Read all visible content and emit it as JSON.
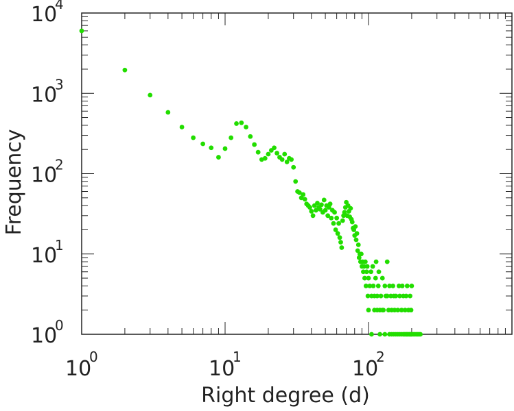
{
  "chart_data": {
    "type": "scatter",
    "title": "",
    "xlabel": "Right degree (d)",
    "ylabel": "Frequency",
    "xscale": "log",
    "yscale": "log",
    "xlim": [
      1,
      1000
    ],
    "ylim": [
      1,
      10000
    ],
    "grid": false,
    "legend": "none",
    "point_color": "#22dd00",
    "axis_color": "#222222",
    "x_ticks": [
      {
        "base": "10",
        "exp": "0"
      },
      {
        "base": "10",
        "exp": "1"
      },
      {
        "base": "10",
        "exp": "2"
      }
    ],
    "y_ticks": [
      {
        "base": "10",
        "exp": "0"
      },
      {
        "base": "10",
        "exp": "1"
      },
      {
        "base": "10",
        "exp": "2"
      },
      {
        "base": "10",
        "exp": "3"
      },
      {
        "base": "10",
        "exp": "4"
      }
    ],
    "series": [
      {
        "name": "frequency",
        "points": [
          [
            1,
            6000
          ],
          [
            2,
            1950
          ],
          [
            3,
            950
          ],
          [
            4,
            580
          ],
          [
            5,
            380
          ],
          [
            6,
            280
          ],
          [
            7,
            235
          ],
          [
            8,
            210
          ],
          [
            9,
            160
          ],
          [
            10,
            205
          ],
          [
            11,
            280
          ],
          [
            12,
            420
          ],
          [
            13,
            430
          ],
          [
            14,
            380
          ],
          [
            15,
            290
          ],
          [
            16,
            230
          ],
          [
            17,
            185
          ],
          [
            18,
            150
          ],
          [
            19,
            155
          ],
          [
            20,
            175
          ],
          [
            21,
            195
          ],
          [
            22,
            210
          ],
          [
            23,
            180
          ],
          [
            24,
            160
          ],
          [
            25,
            150
          ],
          [
            26,
            175
          ],
          [
            27,
            140
          ],
          [
            28,
            155
          ],
          [
            29,
            150
          ],
          [
            30,
            120
          ],
          [
            31,
            80
          ],
          [
            32,
            60
          ],
          [
            33,
            58
          ],
          [
            34,
            50
          ],
          [
            35,
            55
          ],
          [
            36,
            48
          ],
          [
            37,
            42
          ],
          [
            38,
            40
          ],
          [
            39,
            38
          ],
          [
            40,
            34
          ],
          [
            41,
            30
          ],
          [
            42,
            40
          ],
          [
            43,
            35
          ],
          [
            44,
            43
          ],
          [
            45,
            38
          ],
          [
            46,
            36
          ],
          [
            47,
            41
          ],
          [
            48,
            33
          ],
          [
            49,
            47
          ],
          [
            50,
            35
          ],
          [
            51,
            40
          ],
          [
            52,
            30
          ],
          [
            53,
            38
          ],
          [
            54,
            42
          ],
          [
            55,
            28
          ],
          [
            56,
            35
          ],
          [
            57,
            24
          ],
          [
            58,
            33
          ],
          [
            59,
            20
          ],
          [
            60,
            28
          ],
          [
            61,
            18
          ],
          [
            62,
            24
          ],
          [
            63,
            16
          ],
          [
            64,
            14
          ],
          [
            65,
            12
          ],
          [
            66,
            26
          ],
          [
            67,
            30
          ],
          [
            68,
            33
          ],
          [
            69,
            38
          ],
          [
            70,
            44
          ],
          [
            71,
            30
          ],
          [
            72,
            40
          ],
          [
            73,
            34
          ],
          [
            74,
            29
          ],
          [
            75,
            37
          ],
          [
            76,
            27
          ],
          [
            77,
            25
          ],
          [
            78,
            21
          ],
          [
            79,
            20
          ],
          [
            80,
            17
          ],
          [
            81,
            22
          ],
          [
            82,
            15
          ],
          [
            83,
            18
          ],
          [
            84,
            11
          ],
          [
            85,
            13
          ],
          [
            86,
            9
          ],
          [
            87,
            10
          ],
          [
            88,
            8
          ],
          [
            89,
            10
          ],
          [
            90,
            7
          ],
          [
            91,
            8
          ],
          [
            92,
            6
          ],
          [
            93,
            7
          ],
          [
            94,
            5
          ],
          [
            95,
            8
          ],
          [
            96,
            4
          ],
          [
            97,
            6
          ],
          [
            98,
            7
          ],
          [
            99,
            3
          ],
          [
            100,
            5
          ],
          [
            102,
            4
          ],
          [
            104,
            6
          ],
          [
            105,
            3
          ],
          [
            107,
            7
          ],
          [
            108,
            4
          ],
          [
            110,
            3
          ],
          [
            112,
            5
          ],
          [
            113,
            8
          ],
          [
            115,
            3
          ],
          [
            117,
            4
          ],
          [
            118,
            6
          ],
          [
            120,
            2
          ],
          [
            122,
            3
          ],
          [
            125,
            5
          ],
          [
            127,
            2
          ],
          [
            130,
            4
          ],
          [
            132,
            3
          ],
          [
            135,
            8
          ],
          [
            138,
            2
          ],
          [
            140,
            4
          ],
          [
            143,
            3
          ],
          [
            145,
            2
          ],
          [
            148,
            4
          ],
          [
            150,
            3
          ],
          [
            152,
            2
          ],
          [
            155,
            3
          ],
          [
            160,
            2
          ],
          [
            163,
            4
          ],
          [
            165,
            3
          ],
          [
            170,
            2
          ],
          [
            172,
            4
          ],
          [
            175,
            3
          ],
          [
            180,
            2
          ],
          [
            183,
            3
          ],
          [
            186,
            4
          ],
          [
            190,
            2
          ],
          [
            110,
            2
          ],
          [
            125,
            2
          ],
          [
            135,
            3
          ],
          [
            150,
            1
          ],
          [
            160,
            1
          ],
          [
            170,
            1
          ],
          [
            105,
            1
          ],
          [
            120,
            1
          ],
          [
            130,
            1
          ],
          [
            140,
            1
          ],
          [
            145,
            1
          ],
          [
            155,
            1
          ],
          [
            165,
            1
          ],
          [
            175,
            1
          ],
          [
            178,
            1
          ],
          [
            182,
            1
          ],
          [
            185,
            1
          ],
          [
            188,
            1
          ],
          [
            192,
            1
          ],
          [
            195,
            1
          ],
          [
            198,
            1
          ],
          [
            200,
            1
          ],
          [
            205,
            1
          ],
          [
            210,
            1
          ],
          [
            215,
            1
          ],
          [
            220,
            1
          ],
          [
            225,
            1
          ],
          [
            230,
            1
          ],
          [
            100,
            2
          ],
          [
            115,
            2
          ],
          [
            195,
            3
          ],
          [
            200,
            4
          ],
          [
            198,
            2
          ]
        ]
      }
    ]
  }
}
